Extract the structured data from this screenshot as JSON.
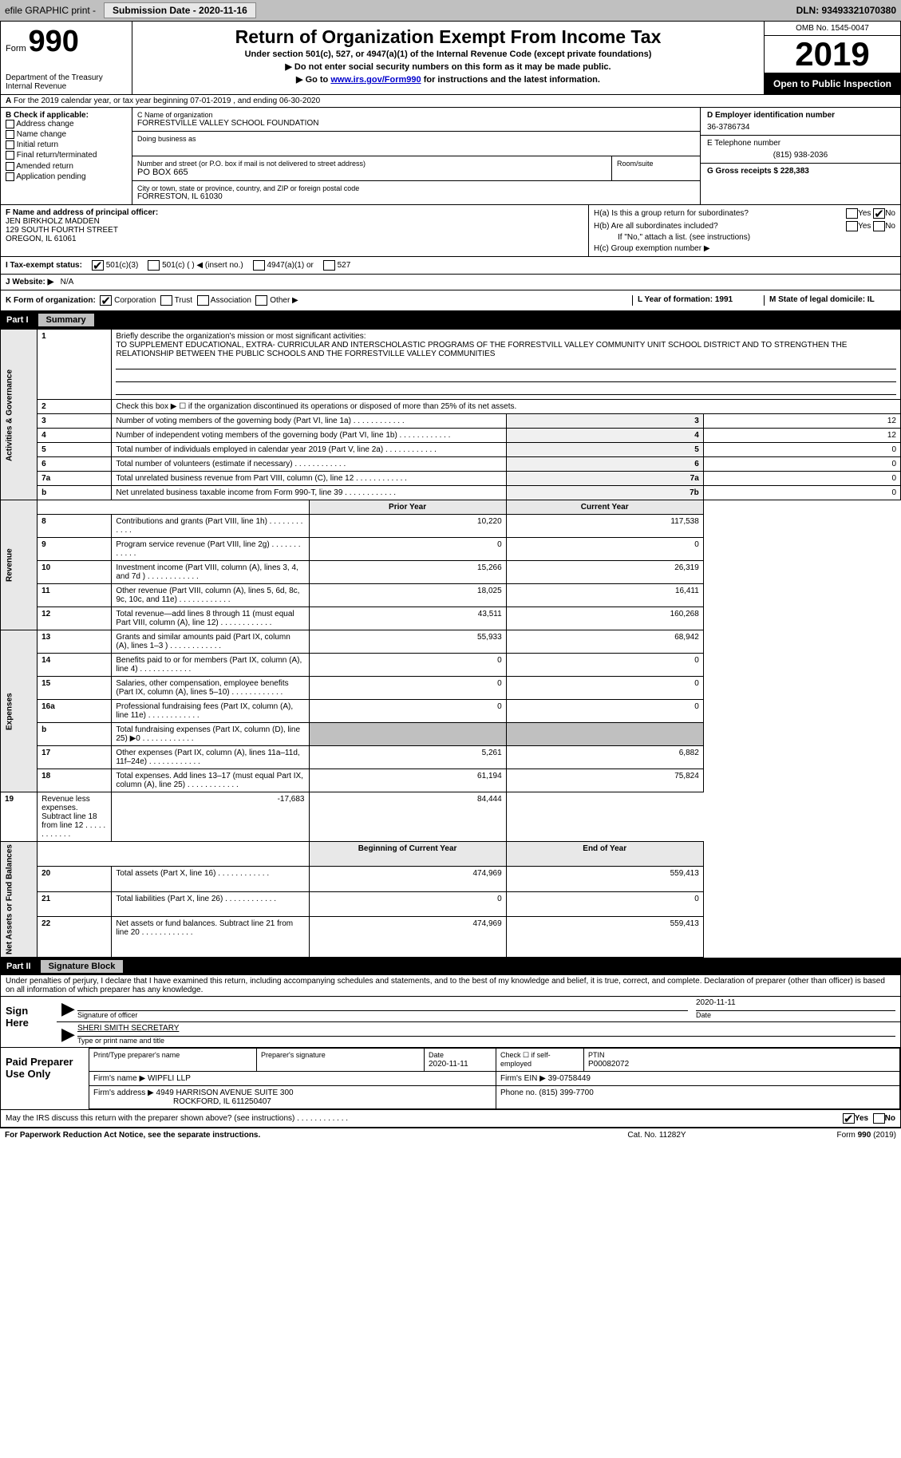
{
  "header_bar": {
    "efile_label": "efile GRAPHIC print -",
    "submission_label": "Submission Date - 2020-11-16",
    "dln_label": "DLN: 93493321070380"
  },
  "form_header": {
    "form_word": "Form",
    "form_number": "990",
    "dept": "Department of the Treasury\nInternal Revenue",
    "title": "Return of Organization Exempt From Income Tax",
    "subtitle": "Under section 501(c), 527, or 4947(a)(1) of the Internal Revenue Code (except private foundations)",
    "instruction1": "▶ Do not enter social security numbers on this form as it may be made public.",
    "instruction2_pre": "▶ Go to ",
    "instruction2_link": "www.irs.gov/Form990",
    "instruction2_post": " for instructions and the latest information.",
    "omb": "OMB No. 1545-0047",
    "year": "2019",
    "open_public": "Open to Public Inspection"
  },
  "row_a": "For the 2019 calendar year, or tax year beginning 07-01-2019   , and ending 06-30-2020",
  "section_b": {
    "header": "B Check if applicable:",
    "opts": [
      "Address change",
      "Name change",
      "Initial return",
      "Final return/terminated",
      "Amended return",
      "Application pending"
    ]
  },
  "section_c": {
    "name_label": "C Name of organization",
    "name": "FORRESTVILLE VALLEY SCHOOL FOUNDATION",
    "dba_label": "Doing business as",
    "addr_label": "Number and street (or P.O. box if mail is not delivered to street address)",
    "room_label": "Room/suite",
    "addr": "PO BOX 665",
    "city_label": "City or town, state or province, country, and ZIP or foreign postal code",
    "city": "FORRESTON, IL  61030"
  },
  "section_d": {
    "ein_label": "D Employer identification number",
    "ein": "36-3786734",
    "phone_label": "E Telephone number",
    "phone": "(815) 938-2036",
    "gross_label": "G Gross receipts $ 228,383"
  },
  "section_f": {
    "label": "F  Name and address of principal officer:",
    "name": "JEN BIRKHOLZ MADDEN",
    "addr1": "129 SOUTH FOURTH STREET",
    "addr2": "OREGON, IL  61061"
  },
  "section_h": {
    "ha": "H(a)  Is this a group return for subordinates?",
    "hb": "H(b)  Are all subordinates included?",
    "hb_note": "If \"No,\" attach a list. (see instructions)",
    "hc": "H(c)  Group exemption number ▶",
    "yes": "Yes",
    "no": "No"
  },
  "row_i": {
    "label": "I  Tax-exempt status:",
    "opt1": "501(c)(3)",
    "opt2": "501(c) (  ) ◀ (insert no.)",
    "opt3": "4947(a)(1) or",
    "opt4": "527"
  },
  "row_j": {
    "label": "J  Website: ▶",
    "value": "N/A"
  },
  "row_k": {
    "label": "K Form of organization:",
    "opts": [
      "Corporation",
      "Trust",
      "Association",
      "Other ▶"
    ],
    "l": "L Year of formation: 1991",
    "m": "M State of legal domicile: IL"
  },
  "part1": {
    "num": "Part I",
    "title": "Summary",
    "line1_label": "Briefly describe the organization's mission or most significant activities:",
    "line1_text": "TO SUPPLEMENT EDUCATIONAL, EXTRA- CURRICULAR AND INTERSCHOLASTIC PROGRAMS OF THE FORRESTVILL VALLEY COMMUNITY UNIT SCHOOL DISTRICT AND TO STRENGTHEN THE RELATIONSHIP BETWEEN THE PUBLIC SCHOOLS AND THE FORRESTVILLE VALLEY COMMUNITIES",
    "line2": "Check this box ▶ ☐  if the organization discontinued its operations or disposed of more than 25% of its net assets.",
    "governance_label": "Activities & Governance",
    "revenue_label": "Revenue",
    "expenses_label": "Expenses",
    "netassets_label": "Net Assets or Fund Balances",
    "rows_gov": [
      {
        "n": "3",
        "t": "Number of voting members of the governing body (Part VI, line 1a)",
        "c": "3",
        "v": "12"
      },
      {
        "n": "4",
        "t": "Number of independent voting members of the governing body (Part VI, line 1b)",
        "c": "4",
        "v": "12"
      },
      {
        "n": "5",
        "t": "Total number of individuals employed in calendar year 2019 (Part V, line 2a)",
        "c": "5",
        "v": "0"
      },
      {
        "n": "6",
        "t": "Total number of volunteers (estimate if necessary)",
        "c": "6",
        "v": "0"
      },
      {
        "n": "7a",
        "t": "Total unrelated business revenue from Part VIII, column (C), line 12",
        "c": "7a",
        "v": "0"
      },
      {
        "n": "b",
        "t": "Net unrelated business taxable income from Form 990-T, line 39",
        "c": "7b",
        "v": "0"
      }
    ],
    "prior_year": "Prior Year",
    "current_year": "Current Year",
    "rows_rev": [
      {
        "n": "8",
        "t": "Contributions and grants (Part VIII, line 1h)",
        "py": "10,220",
        "cy": "117,538"
      },
      {
        "n": "9",
        "t": "Program service revenue (Part VIII, line 2g)",
        "py": "0",
        "cy": "0"
      },
      {
        "n": "10",
        "t": "Investment income (Part VIII, column (A), lines 3, 4, and 7d )",
        "py": "15,266",
        "cy": "26,319"
      },
      {
        "n": "11",
        "t": "Other revenue (Part VIII, column (A), lines 5, 6d, 8c, 9c, 10c, and 11e)",
        "py": "18,025",
        "cy": "16,411"
      },
      {
        "n": "12",
        "t": "Total revenue—add lines 8 through 11 (must equal Part VIII, column (A), line 12)",
        "py": "43,511",
        "cy": "160,268"
      }
    ],
    "rows_exp": [
      {
        "n": "13",
        "t": "Grants and similar amounts paid (Part IX, column (A), lines 1–3 )",
        "py": "55,933",
        "cy": "68,942"
      },
      {
        "n": "14",
        "t": "Benefits paid to or for members (Part IX, column (A), line 4)",
        "py": "0",
        "cy": "0"
      },
      {
        "n": "15",
        "t": "Salaries, other compensation, employee benefits (Part IX, column (A), lines 5–10)",
        "py": "0",
        "cy": "0"
      },
      {
        "n": "16a",
        "t": "Professional fundraising fees (Part IX, column (A), line 11e)",
        "py": "0",
        "cy": "0"
      },
      {
        "n": "b",
        "t": "Total fundraising expenses (Part IX, column (D), line 25) ▶0",
        "py": "",
        "cy": "",
        "shaded": true
      },
      {
        "n": "17",
        "t": "Other expenses (Part IX, column (A), lines 11a–11d, 11f–24e)",
        "py": "5,261",
        "cy": "6,882"
      },
      {
        "n": "18",
        "t": "Total expenses. Add lines 13–17 (must equal Part IX, column (A), line 25)",
        "py": "61,194",
        "cy": "75,824"
      },
      {
        "n": "19",
        "t": "Revenue less expenses. Subtract line 18 from line 12",
        "py": "-17,683",
        "cy": "84,444"
      }
    ],
    "boy": "Beginning of Current Year",
    "eoy": "End of Year",
    "rows_net": [
      {
        "n": "20",
        "t": "Total assets (Part X, line 16)",
        "py": "474,969",
        "cy": "559,413"
      },
      {
        "n": "21",
        "t": "Total liabilities (Part X, line 26)",
        "py": "0",
        "cy": "0"
      },
      {
        "n": "22",
        "t": "Net assets or fund balances. Subtract line 21 from line 20",
        "py": "474,969",
        "cy": "559,413"
      }
    ]
  },
  "part2": {
    "num": "Part II",
    "title": "Signature Block",
    "declaration": "Under penalties of perjury, I declare that I have examined this return, including accompanying schedules and statements, and to the best of my knowledge and belief, it is true, correct, and complete. Declaration of preparer (other than officer) is based on all information of which preparer has any knowledge.",
    "sign_here": "Sign Here",
    "sig_officer": "Signature of officer",
    "sig_date": "Date",
    "sig_date_val": "2020-11-11",
    "officer_name": "SHERI SMITH SECRETARY",
    "officer_name_label": "Type or print name and title",
    "paid_prep": "Paid Preparer Use Only",
    "prep_name_label": "Print/Type preparer's name",
    "prep_sig_label": "Preparer's signature",
    "prep_date_label": "Date",
    "prep_date": "2020-11-11",
    "check_self": "Check ☐ if self-employed",
    "ptin_label": "PTIN",
    "ptin": "P00082072",
    "firm_name_label": "Firm's name    ▶",
    "firm_name": "WIPFLI LLP",
    "firm_ein_label": "Firm's EIN ▶",
    "firm_ein": "39-0758449",
    "firm_addr_label": "Firm's address ▶",
    "firm_addr1": "4949 HARRISON AVENUE SUITE 300",
    "firm_addr2": "ROCKFORD, IL  611250407",
    "firm_phone_label": "Phone no.",
    "firm_phone": "(815) 399-7700",
    "discuss": "May the IRS discuss this return with the preparer shown above? (see instructions)",
    "yes": "Yes",
    "no": "No"
  },
  "footer": {
    "left": "For Paperwork Reduction Act Notice, see the separate instructions.",
    "center": "Cat. No. 11282Y",
    "right": "Form 990 (2019)"
  }
}
